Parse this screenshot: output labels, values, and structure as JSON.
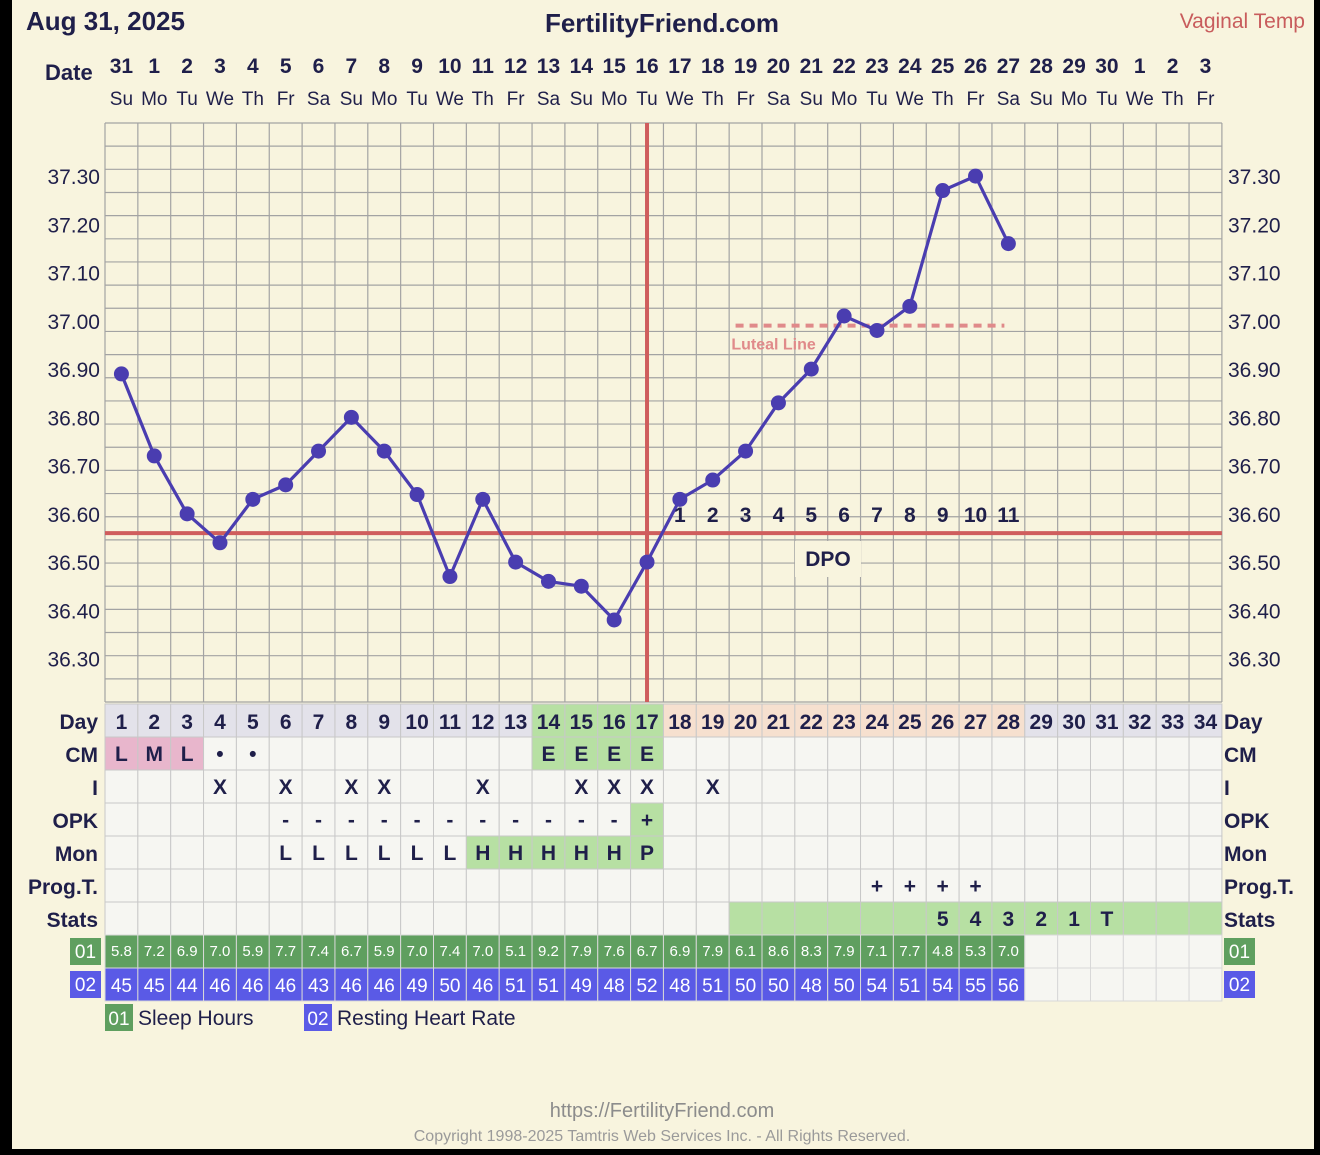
{
  "header": {
    "date": "Aug 31, 2025",
    "site": "FertilityFriend.com",
    "temp_method": "Vaginal Temp",
    "date_label": "Date"
  },
  "dates": [
    "31",
    "1",
    "2",
    "3",
    "4",
    "5",
    "6",
    "7",
    "8",
    "9",
    "10",
    "11",
    "12",
    "13",
    "14",
    "15",
    "16",
    "17",
    "18",
    "19",
    "20",
    "21",
    "22",
    "23",
    "24",
    "25",
    "26",
    "27",
    "28",
    "29",
    "30",
    "1",
    "2",
    "3"
  ],
  "weekdays": [
    "Su",
    "Mo",
    "Tu",
    "We",
    "Th",
    "Fr",
    "Sa",
    "Su",
    "Mo",
    "Tu",
    "We",
    "Th",
    "Fr",
    "Sa",
    "Su",
    "Mo",
    "Tu",
    "We",
    "Th",
    "Fr",
    "Sa",
    "Su",
    "Mo",
    "Tu",
    "We",
    "Th",
    "Fr",
    "Sa",
    "Su",
    "Mo",
    "Tu",
    "We",
    "Th",
    "Fr"
  ],
  "chart_data": {
    "type": "line",
    "title": "",
    "xlabel": "Day",
    "ylabel": "",
    "x": [
      1,
      2,
      3,
      4,
      5,
      6,
      7,
      8,
      9,
      10,
      11,
      12,
      13,
      14,
      15,
      16,
      17,
      18,
      19,
      20,
      21,
      22,
      23,
      24,
      25,
      26,
      27,
      28
    ],
    "series": [
      {
        "name": "",
        "values": [
          36.89,
          36.72,
          36.6,
          36.54,
          36.63,
          36.66,
          36.73,
          36.8,
          36.73,
          36.64,
          36.47,
          36.63,
          36.5,
          36.46,
          36.45,
          36.38,
          36.5,
          36.63,
          36.67,
          36.73,
          36.83,
          36.9,
          37.01,
          36.98,
          37.03,
          37.27,
          37.3,
          37.16
        ]
      }
    ],
    "ylim": [
      36.21,
      37.41
    ],
    "yticks": [
      "36.30",
      "36.40",
      "36.50",
      "36.60",
      "36.70",
      "36.80",
      "36.90",
      "37.00",
      "37.10",
      "37.20",
      "37.30"
    ],
    "ytick_values": [
      36.3,
      36.4,
      36.5,
      36.6,
      36.7,
      36.8,
      36.9,
      37.0,
      37.1,
      37.2,
      37.3
    ],
    "coverline": 36.56,
    "ovulation_day": 17,
    "luteal_line": {
      "value": 36.99,
      "from_day": 20,
      "to_day": 28,
      "label": "Luteal Line"
    },
    "dpo": [
      "1",
      "2",
      "3",
      "4",
      "5",
      "6",
      "7",
      "8",
      "9",
      "10",
      "11"
    ],
    "dpo_label": "DPO",
    "grid": true,
    "colors": {
      "line": "#4a3db0",
      "coverline": "#cf5d5d",
      "luteal": "#e08a8a"
    }
  },
  "days": [
    "1",
    "2",
    "3",
    "4",
    "5",
    "6",
    "7",
    "8",
    "9",
    "10",
    "11",
    "12",
    "13",
    "14",
    "15",
    "16",
    "17",
    "18",
    "19",
    "20",
    "21",
    "22",
    "23",
    "24",
    "25",
    "26",
    "27",
    "28",
    "29",
    "30",
    "31",
    "32",
    "33",
    "34"
  ],
  "rows": [
    {
      "key": "day",
      "label": "Day"
    },
    {
      "key": "cm",
      "label": "CM",
      "cells": [
        "L",
        "M",
        "L",
        "•",
        "•",
        "",
        "",
        "",
        "",
        "",
        "",
        "",
        "",
        "E",
        "E",
        "E",
        "E",
        "",
        "",
        "",
        "",
        "",
        "",
        "",
        "",
        "",
        "",
        "",
        "",
        "",
        "",
        "",
        "",
        ""
      ]
    },
    {
      "key": "i",
      "label": "I",
      "cells": [
        "",
        "",
        "",
        "X",
        "",
        "X",
        "",
        "X",
        "X",
        "",
        "",
        "X",
        "",
        "",
        "X",
        "X",
        "X",
        "",
        "X",
        "",
        "",
        "",
        "",
        "",
        "",
        "",
        "",
        "",
        "",
        "",
        "",
        "",
        "",
        ""
      ]
    },
    {
      "key": "opk",
      "label": "OPK",
      "cells": [
        "",
        "",
        "",
        "",
        "",
        "-",
        "-",
        "-",
        "-",
        "-",
        "-",
        "-",
        "-",
        "-",
        "-",
        "-",
        "+",
        "",
        "",
        "",
        "",
        "",
        "",
        "",
        "",
        "",
        "",
        "",
        "",
        "",
        "",
        "",
        "",
        ""
      ]
    },
    {
      "key": "mon",
      "label": "Mon",
      "cells": [
        "",
        "",
        "",
        "",
        "",
        "L",
        "L",
        "L",
        "L",
        "L",
        "L",
        "H",
        "H",
        "H",
        "H",
        "H",
        "P",
        "",
        "",
        "",
        "",
        "",
        "",
        "",
        "",
        "",
        "",
        "",
        "",
        "",
        "",
        "",
        "",
        ""
      ]
    },
    {
      "key": "prog",
      "label": "Prog.T.",
      "cells": [
        "",
        "",
        "",
        "",
        "",
        "",
        "",
        "",
        "",
        "",
        "",
        "",
        "",
        "",
        "",
        "",
        "",
        "",
        "",
        "",
        "",
        "",
        "",
        "+",
        "+",
        "+",
        "+",
        "",
        "",
        "",
        "",
        "",
        "",
        ""
      ]
    },
    {
      "key": "stats",
      "label": "Stats",
      "cells": [
        "",
        "",
        "",
        "",
        "",
        "",
        "",
        "",
        "",
        "",
        "",
        "",
        "",
        "",
        "",
        "",
        "",
        "",
        "",
        "",
        "",
        "",
        "",
        "",
        "",
        "5",
        "4",
        "3",
        "2",
        "1",
        "T",
        "",
        "",
        ""
      ]
    }
  ],
  "sleep_label": "01",
  "hr_label": "02",
  "sleep_hours": [
    "5.8",
    "7.2",
    "6.9",
    "7.0",
    "5.9",
    "7.7",
    "7.4",
    "6.7",
    "5.9",
    "7.0",
    "7.4",
    "7.0",
    "5.1",
    "9.2",
    "7.9",
    "7.6",
    "6.7",
    "6.9",
    "7.9",
    "6.1",
    "8.6",
    "8.3",
    "7.9",
    "7.1",
    "7.7",
    "4.8",
    "5.3",
    "7.0"
  ],
  "heart_rate": [
    "45",
    "45",
    "44",
    "46",
    "46",
    "46",
    "43",
    "46",
    "46",
    "49",
    "50",
    "46",
    "51",
    "51",
    "49",
    "48",
    "52",
    "48",
    "51",
    "50",
    "50",
    "48",
    "50",
    "54",
    "51",
    "54",
    "55",
    "56"
  ],
  "legend": [
    {
      "code": "01",
      "label": "Sleep Hours",
      "color": "#5f9f5f"
    },
    {
      "code": "02",
      "label": "Resting Heart Rate",
      "color": "#5a5ae6"
    }
  ],
  "footer": {
    "url": "https://FertilityFriend.com",
    "copyright": "Copyright 1998-2025 Tamtris Web Services Inc. - All Rights Reserved."
  },
  "colors": {
    "bg": "#f8f4de",
    "title": "#1f1f4a",
    "temp_method": "#c85c5c",
    "day_header_pre": "#e3e2ea",
    "day_header_fertile": "#b7e0a3",
    "day_header_post": "#f6e0cf",
    "cell_bg": "#f6f6f2",
    "cm_pink": "#e8b6cc",
    "green": "#b7e0a3",
    "sleep_green": "#5f9f5f",
    "hr_blue": "#5a5ae6",
    "grid": "#a3a3a3"
  }
}
